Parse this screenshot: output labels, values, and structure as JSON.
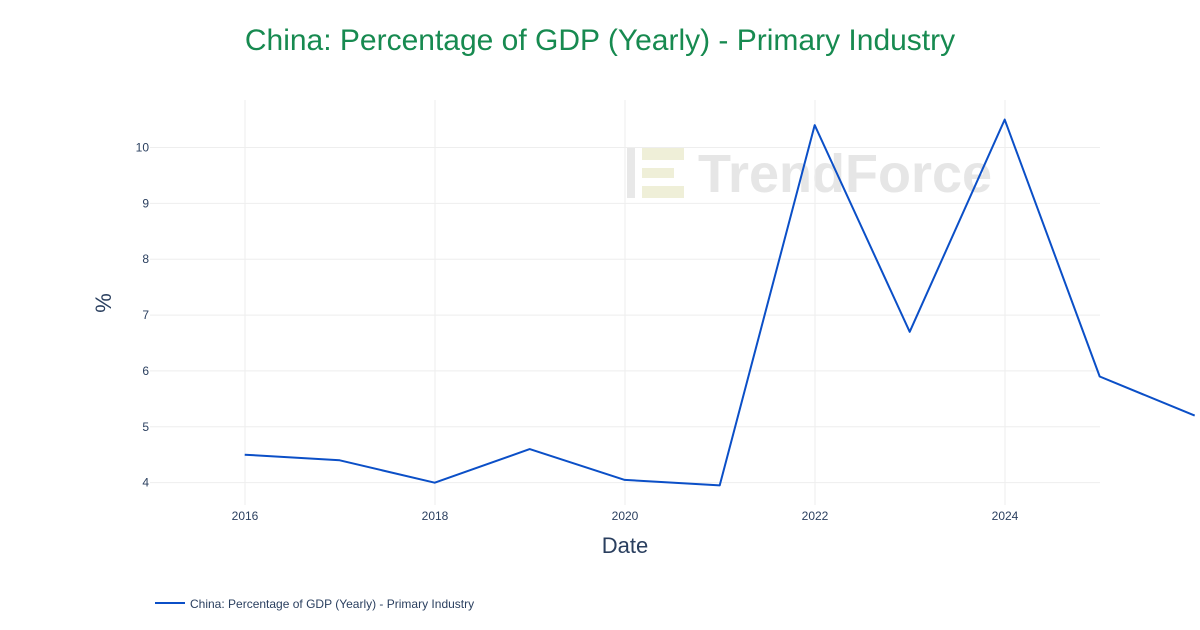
{
  "chart_data": {
    "type": "line",
    "title": "China: Percentage of GDP (Yearly) - Primary Industry",
    "xlabel": "Date",
    "ylabel": "%",
    "x_ticks": [
      2016,
      2018,
      2020,
      2022,
      2024
    ],
    "y_ticks": [
      4,
      5,
      6,
      7,
      8,
      9,
      10
    ],
    "xlim": [
      2015,
      2025
    ],
    "ylim": [
      3.6,
      10.85
    ],
    "grid": true,
    "legend_position": "bottom-left",
    "series": [
      {
        "name": "China: Percentage of GDP (Yearly) - Primary Industry",
        "color": "#0b4fc7",
        "x": [
          "2015-12-31",
          "2016-12-31",
          "2017-12-31",
          "2018-12-31",
          "2019-12-31",
          "2020-12-31",
          "2021-12-31",
          "2022-12-31",
          "2023-12-31",
          "2024-12-31",
          "2025-12-31"
        ],
        "values": [
          4.5,
          4.4,
          4.0,
          4.6,
          4.05,
          3.95,
          10.4,
          6.7,
          10.5,
          5.9,
          5.2
        ]
      }
    ]
  },
  "watermark": {
    "text": "TrendForce",
    "color": "#e6e6e6",
    "icon": "trendforce-logo-icon"
  },
  "colors": {
    "title": "#178a50",
    "line": "#0b4fc7",
    "grid": "#eeeeee",
    "axis_text": "#2a3f5f"
  }
}
